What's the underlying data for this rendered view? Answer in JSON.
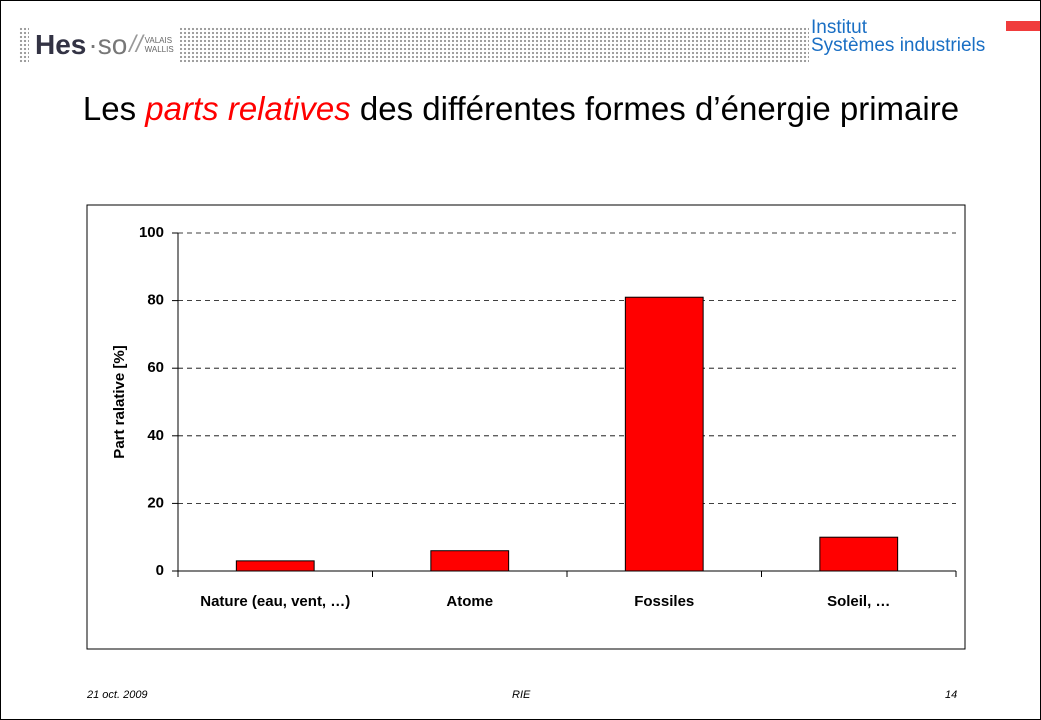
{
  "header": {
    "logo_main": "Hes",
    "logo_dot": "·so",
    "logo_sub_1": "VALAIS",
    "logo_sub_2": "WALLIS",
    "institute_1": "Institut",
    "institute_2": "Systèmes industriels"
  },
  "slide_title": [
    "Les ",
    "parts relatives",
    " des différentes formes d’énergie primaire"
  ],
  "footer": {
    "date": "21 oct. 2009",
    "center": "RIE",
    "page": "14"
  },
  "chart_data": {
    "type": "bar",
    "categories": [
      "Nature (eau, vent, …)",
      "Atome",
      "Fossiles",
      "Soleil, …"
    ],
    "values": [
      3,
      6,
      81,
      10
    ],
    "color": "#ff0000",
    "ylabel": "Part ralative [%]",
    "ylim": [
      0,
      100
    ],
    "yticks": [
      0,
      20,
      40,
      60,
      80,
      100
    ],
    "grid": true
  }
}
